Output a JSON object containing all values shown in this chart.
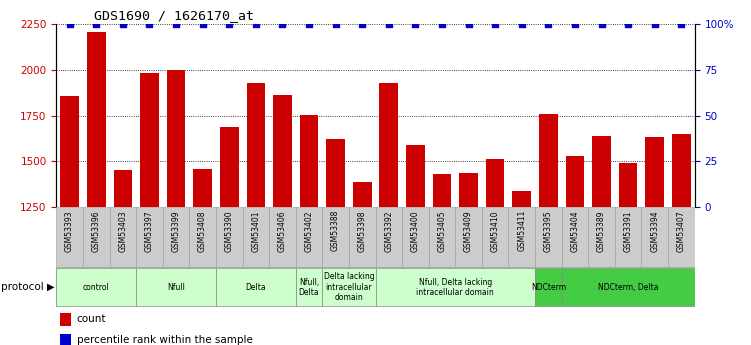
{
  "title": "GDS1690 / 1626170_at",
  "samples": [
    "GSM53393",
    "GSM53396",
    "GSM53403",
    "GSM53397",
    "GSM53399",
    "GSM53408",
    "GSM53390",
    "GSM53401",
    "GSM53406",
    "GSM53402",
    "GSM53388",
    "GSM53398",
    "GSM53392",
    "GSM53400",
    "GSM53405",
    "GSM53409",
    "GSM53410",
    "GSM53411",
    "GSM53395",
    "GSM53404",
    "GSM53389",
    "GSM53391",
    "GSM53394",
    "GSM53407"
  ],
  "counts": [
    1855,
    2205,
    1455,
    1985,
    2000,
    1460,
    1690,
    1930,
    1860,
    1755,
    1620,
    1385,
    1930,
    1590,
    1430,
    1435,
    1510,
    1340,
    1760,
    1530,
    1640,
    1490,
    1635,
    1650
  ],
  "percentiles": [
    100,
    100,
    100,
    100,
    100,
    100,
    100,
    100,
    100,
    100,
    100,
    100,
    100,
    100,
    100,
    100,
    100,
    100,
    100,
    100,
    100,
    100,
    100,
    100
  ],
  "bar_color": "#cc0000",
  "dot_color": "#0000cc",
  "ylim_left": [
    1250,
    2250
  ],
  "ylim_right": [
    0,
    100
  ],
  "yticks_left": [
    1250,
    1500,
    1750,
    2000,
    2250
  ],
  "yticks_right": [
    0,
    25,
    50,
    75,
    100
  ],
  "protocol_groups": [
    {
      "label": "control",
      "start": 0,
      "end": 3,
      "color": "#ccffcc"
    },
    {
      "label": "Nfull",
      "start": 3,
      "end": 6,
      "color": "#ccffcc"
    },
    {
      "label": "Delta",
      "start": 6,
      "end": 9,
      "color": "#ccffcc"
    },
    {
      "label": "Nfull,\nDelta",
      "start": 9,
      "end": 10,
      "color": "#ccffcc"
    },
    {
      "label": "Delta lacking\nintracellular\ndomain",
      "start": 10,
      "end": 12,
      "color": "#ccffcc"
    },
    {
      "label": "Nfull, Delta lacking\nintracellular domain",
      "start": 12,
      "end": 18,
      "color": "#ccffcc"
    },
    {
      "label": "NDCterm",
      "start": 18,
      "end": 19,
      "color": "#44cc44"
    },
    {
      "label": "NDCterm, Delta",
      "start": 19,
      "end": 24,
      "color": "#44cc44"
    }
  ],
  "legend_count_label": "count",
  "legend_pct_label": "percentile rank within the sample",
  "light_green": "#ccffcc",
  "dark_green": "#44cc44",
  "label_bg": "#cccccc",
  "plot_bg": "#ffffff"
}
